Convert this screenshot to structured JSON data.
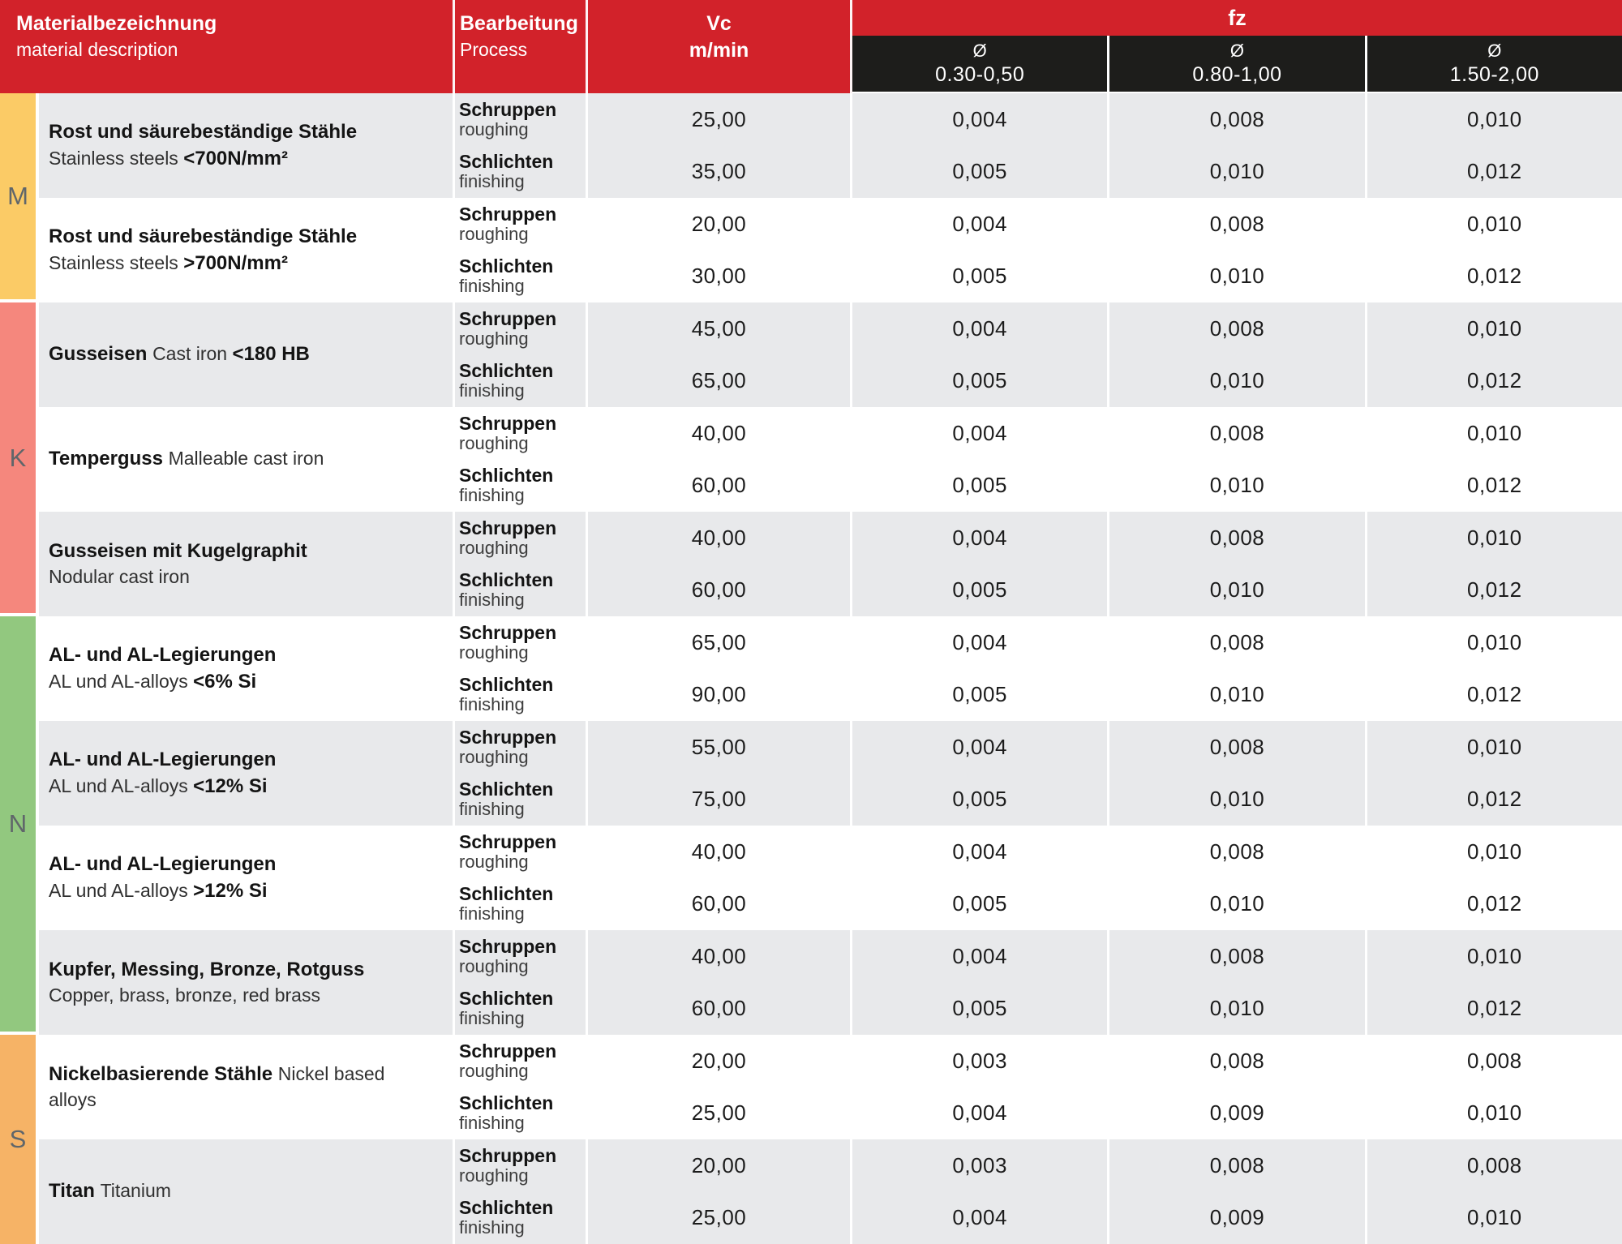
{
  "colors": {
    "header_red": "#D2222A",
    "subheader_black": "#1D1D1B",
    "row_gray": "#E8E9EB",
    "row_white": "#FFFFFF",
    "letter_gray": "#60666A",
    "group_m_yellow": "#FBCB66",
    "group_k_salmon": "#F5877D",
    "group_n_green": "#92C87F",
    "group_s_orange": "#F6B366"
  },
  "header": {
    "material": {
      "de": "Materialbezeichnung",
      "en": "material description"
    },
    "process": {
      "de": "Bearbeitung",
      "en": "Process"
    },
    "vc": {
      "line1": "Vc",
      "line2": "m/min"
    },
    "fz": {
      "label": "fz",
      "columns": [
        {
          "symbol": "Ø",
          "range": "0.30-0,50"
        },
        {
          "symbol": "Ø",
          "range": "0.80-1,00"
        },
        {
          "symbol": "Ø",
          "range": "1.50-2,00"
        }
      ]
    }
  },
  "groups": [
    {
      "letter": "M",
      "color": "#FBCB66",
      "block_count": 2
    },
    {
      "letter": "K",
      "color": "#F5877D",
      "block_count": 3
    },
    {
      "letter": "N",
      "color": "#92C87F",
      "block_count": 4
    },
    {
      "letter": "S",
      "color": "#F6B366",
      "block_count": 2
    }
  ],
  "blocks": [
    {
      "material_lines": [
        [
          {
            "text": "Rost und säurebeständige Stähle",
            "bold": true
          }
        ],
        [
          {
            "text": "Stainless steels ",
            "bold": false
          },
          {
            "text": "<700N/mm²",
            "bold": true
          }
        ]
      ],
      "rows": [
        {
          "process_de": "Schruppen",
          "process_en": "roughing",
          "vc": "25,00",
          "fz": [
            "0,004",
            "0,008",
            "0,010"
          ]
        },
        {
          "process_de": "Schlichten",
          "process_en": "finishing",
          "vc": "35,00",
          "fz": [
            "0,005",
            "0,010",
            "0,012"
          ]
        }
      ]
    },
    {
      "material_lines": [
        [
          {
            "text": "Rost und säurebeständige Stähle",
            "bold": true
          }
        ],
        [
          {
            "text": "Stainless steels ",
            "bold": false
          },
          {
            "text": ">700N/mm²",
            "bold": true
          }
        ]
      ],
      "rows": [
        {
          "process_de": "Schruppen",
          "process_en": "roughing",
          "vc": "20,00",
          "fz": [
            "0,004",
            "0,008",
            "0,010"
          ]
        },
        {
          "process_de": "Schlichten",
          "process_en": "finishing",
          "vc": "30,00",
          "fz": [
            "0,005",
            "0,010",
            "0,012"
          ]
        }
      ]
    },
    {
      "material_lines": [
        [
          {
            "text": "Gusseisen ",
            "bold": true
          },
          {
            "text": "Cast iron ",
            "bold": false
          },
          {
            "text": "<180 HB",
            "bold": true
          }
        ]
      ],
      "rows": [
        {
          "process_de": "Schruppen",
          "process_en": "roughing",
          "vc": "45,00",
          "fz": [
            "0,004",
            "0,008",
            "0,010"
          ]
        },
        {
          "process_de": "Schlichten",
          "process_en": "finishing",
          "vc": "65,00",
          "fz": [
            "0,005",
            "0,010",
            "0,012"
          ]
        }
      ]
    },
    {
      "material_lines": [
        [
          {
            "text": "Temperguss ",
            "bold": true
          },
          {
            "text": "Malleable cast iron",
            "bold": false
          }
        ]
      ],
      "rows": [
        {
          "process_de": "Schruppen",
          "process_en": "roughing",
          "vc": "40,00",
          "fz": [
            "0,004",
            "0,008",
            "0,010"
          ]
        },
        {
          "process_de": "Schlichten",
          "process_en": "finishing",
          "vc": "60,00",
          "fz": [
            "0,005",
            "0,010",
            "0,012"
          ]
        }
      ]
    },
    {
      "material_lines": [
        [
          {
            "text": "Gusseisen mit Kugelgraphit",
            "bold": true
          }
        ],
        [
          {
            "text": "Nodular cast iron",
            "bold": false
          }
        ]
      ],
      "rows": [
        {
          "process_de": "Schruppen",
          "process_en": "roughing",
          "vc": "40,00",
          "fz": [
            "0,004",
            "0,008",
            "0,010"
          ]
        },
        {
          "process_de": "Schlichten",
          "process_en": "finishing",
          "vc": "60,00",
          "fz": [
            "0,005",
            "0,010",
            "0,012"
          ]
        }
      ]
    },
    {
      "material_lines": [
        [
          {
            "text": "AL- und AL-Legierungen",
            "bold": true
          }
        ],
        [
          {
            "text": "AL und AL-alloys ",
            "bold": false
          },
          {
            "text": "<6% Si",
            "bold": true
          }
        ]
      ],
      "rows": [
        {
          "process_de": "Schruppen",
          "process_en": "roughing",
          "vc": "65,00",
          "fz": [
            "0,004",
            "0,008",
            "0,010"
          ]
        },
        {
          "process_de": "Schlichten",
          "process_en": "finishing",
          "vc": "90,00",
          "fz": [
            "0,005",
            "0,010",
            "0,012"
          ]
        }
      ]
    },
    {
      "material_lines": [
        [
          {
            "text": "AL- und AL-Legierungen",
            "bold": true
          }
        ],
        [
          {
            "text": "AL und AL-alloys ",
            "bold": false
          },
          {
            "text": "<12% Si",
            "bold": true
          }
        ]
      ],
      "rows": [
        {
          "process_de": "Schruppen",
          "process_en": "roughing",
          "vc": "55,00",
          "fz": [
            "0,004",
            "0,008",
            "0,010"
          ]
        },
        {
          "process_de": "Schlichten",
          "process_en": "finishing",
          "vc": "75,00",
          "fz": [
            "0,005",
            "0,010",
            "0,012"
          ]
        }
      ]
    },
    {
      "material_lines": [
        [
          {
            "text": "AL- und AL-Legierungen",
            "bold": true
          }
        ],
        [
          {
            "text": "AL und AL-alloys ",
            "bold": false
          },
          {
            "text": ">12% Si",
            "bold": true
          }
        ]
      ],
      "rows": [
        {
          "process_de": "Schruppen",
          "process_en": "roughing",
          "vc": "40,00",
          "fz": [
            "0,004",
            "0,008",
            "0,010"
          ]
        },
        {
          "process_de": "Schlichten",
          "process_en": "finishing",
          "vc": "60,00",
          "fz": [
            "0,005",
            "0,010",
            "0,012"
          ]
        }
      ]
    },
    {
      "material_lines": [
        [
          {
            "text": "Kupfer, Messing, Bronze, Rotguss",
            "bold": true
          }
        ],
        [
          {
            "text": "Copper, brass, bronze, red brass",
            "bold": false
          }
        ]
      ],
      "rows": [
        {
          "process_de": "Schruppen",
          "process_en": "roughing",
          "vc": "40,00",
          "fz": [
            "0,004",
            "0,008",
            "0,010"
          ]
        },
        {
          "process_de": "Schlichten",
          "process_en": "finishing",
          "vc": "60,00",
          "fz": [
            "0,005",
            "0,010",
            "0,012"
          ]
        }
      ]
    },
    {
      "material_lines": [
        [
          {
            "text": "Nickelbasierende Stähle ",
            "bold": true
          },
          {
            "text": "Nickel based",
            "bold": false
          }
        ],
        [
          {
            "text": "alloys",
            "bold": false
          }
        ]
      ],
      "rows": [
        {
          "process_de": "Schruppen",
          "process_en": "roughing",
          "vc": "20,00",
          "fz": [
            "0,003",
            "0,008",
            "0,008"
          ]
        },
        {
          "process_de": "Schlichten",
          "process_en": "finishing",
          "vc": "25,00",
          "fz": [
            "0,004",
            "0,009",
            "0,010"
          ]
        }
      ]
    },
    {
      "material_lines": [
        [
          {
            "text": "Titan ",
            "bold": true
          },
          {
            "text": "Titanium",
            "bold": false
          }
        ]
      ],
      "rows": [
        {
          "process_de": "Schruppen",
          "process_en": "roughing",
          "vc": "20,00",
          "fz": [
            "0,003",
            "0,008",
            "0,008"
          ]
        },
        {
          "process_de": "Schlichten",
          "process_en": "finishing",
          "vc": "25,00",
          "fz": [
            "0,004",
            "0,009",
            "0,010"
          ]
        }
      ]
    }
  ]
}
